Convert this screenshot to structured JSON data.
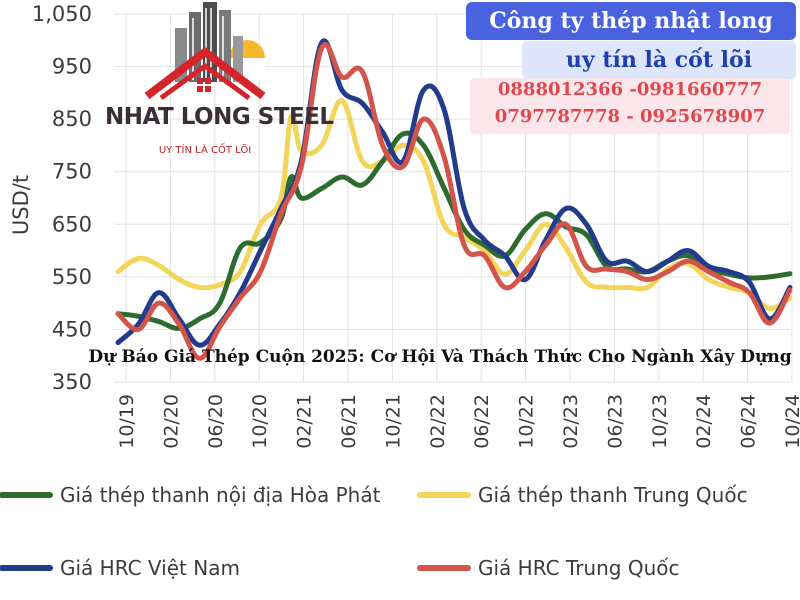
{
  "chart_data": {
    "type": "line",
    "ylabel": "USD/t",
    "ylim": [
      350,
      1050
    ],
    "yticks": [
      "1,050",
      "950",
      "850",
      "750",
      "650",
      "550",
      "450",
      "350"
    ],
    "ytick_values": [
      1050,
      950,
      850,
      750,
      650,
      550,
      450,
      350
    ],
    "xlabels": [
      "10/19",
      "02/20",
      "06/20",
      "10/20",
      "02/21",
      "06/21",
      "10/21",
      "02/22",
      "06/22",
      "10/22",
      "02/23",
      "06/23",
      "10/23",
      "02/24",
      "06/24",
      "10/24"
    ],
    "grid": true,
    "legend_position": "bottom",
    "series": [
      {
        "name": "Giá thép thanh nội địa Hòa Phát",
        "color": "#2e6b2e",
        "points": [
          [
            0,
            480
          ],
          [
            1,
            475
          ],
          [
            2,
            465
          ],
          [
            3,
            452
          ],
          [
            4,
            470
          ],
          [
            5,
            500
          ],
          [
            6,
            605
          ],
          [
            7,
            615
          ],
          [
            8,
            660
          ],
          [
            8.5,
            740
          ],
          [
            9,
            700
          ],
          [
            10,
            718
          ],
          [
            11,
            740
          ],
          [
            12,
            725
          ],
          [
            13,
            770
          ],
          [
            14,
            822
          ],
          [
            15,
            800
          ],
          [
            16,
            720
          ],
          [
            17,
            640
          ],
          [
            18,
            610
          ],
          [
            19,
            590
          ],
          [
            20,
            640
          ],
          [
            21,
            670
          ],
          [
            22,
            645
          ],
          [
            23,
            630
          ],
          [
            24,
            570
          ],
          [
            25,
            565
          ],
          [
            26,
            560
          ],
          [
            27,
            580
          ],
          [
            28,
            590
          ],
          [
            29,
            565
          ],
          [
            30,
            555
          ],
          [
            31,
            548
          ],
          [
            32,
            550
          ],
          [
            33,
            556
          ]
        ]
      },
      {
        "name": "Giá thép thanh Trung Quốc",
        "color": "#f2d55a",
        "points": [
          [
            0,
            560
          ],
          [
            1,
            585
          ],
          [
            2,
            572
          ],
          [
            3,
            545
          ],
          [
            4,
            530
          ],
          [
            5,
            535
          ],
          [
            6,
            560
          ],
          [
            7,
            650
          ],
          [
            8,
            700
          ],
          [
            8.5,
            855
          ],
          [
            9,
            790
          ],
          [
            10,
            800
          ],
          [
            11,
            885
          ],
          [
            12,
            770
          ],
          [
            13,
            770
          ],
          [
            14,
            800
          ],
          [
            15,
            770
          ],
          [
            16,
            650
          ],
          [
            17,
            625
          ],
          [
            18,
            600
          ],
          [
            19,
            555
          ],
          [
            20,
            600
          ],
          [
            21,
            650
          ],
          [
            22,
            605
          ],
          [
            23,
            540
          ],
          [
            24,
            530
          ],
          [
            25,
            530
          ],
          [
            26,
            530
          ],
          [
            27,
            565
          ],
          [
            28,
            575
          ],
          [
            29,
            545
          ],
          [
            30,
            530
          ],
          [
            31,
            520
          ],
          [
            32,
            490
          ],
          [
            33,
            510
          ]
        ]
      },
      {
        "name": "Giá HRC Việt Nam",
        "color": "#233b8c",
        "points": [
          [
            0,
            425
          ],
          [
            1,
            460
          ],
          [
            2,
            520
          ],
          [
            3,
            470
          ],
          [
            4,
            420
          ],
          [
            5,
            460
          ],
          [
            6,
            520
          ],
          [
            7,
            600
          ],
          [
            8,
            680
          ],
          [
            9,
            770
          ],
          [
            10,
            995
          ],
          [
            11,
            905
          ],
          [
            12,
            880
          ],
          [
            13,
            825
          ],
          [
            14,
            770
          ],
          [
            15,
            905
          ],
          [
            16,
            870
          ],
          [
            17,
            680
          ],
          [
            18,
            620
          ],
          [
            19,
            590
          ],
          [
            20,
            545
          ],
          [
            21,
            620
          ],
          [
            22,
            680
          ],
          [
            23,
            650
          ],
          [
            24,
            580
          ],
          [
            25,
            580
          ],
          [
            26,
            560
          ],
          [
            27,
            580
          ],
          [
            28,
            600
          ],
          [
            29,
            570
          ],
          [
            30,
            560
          ],
          [
            31,
            540
          ],
          [
            32,
            470
          ],
          [
            33,
            530
          ]
        ]
      },
      {
        "name": "Giá HRC Trung Quốc",
        "color": "#d3544a",
        "points": [
          [
            0,
            480
          ],
          [
            1,
            450
          ],
          [
            2,
            500
          ],
          [
            3,
            460
          ],
          [
            4,
            395
          ],
          [
            5,
            455
          ],
          [
            6,
            510
          ],
          [
            7,
            560
          ],
          [
            8,
            670
          ],
          [
            9,
            760
          ],
          [
            10,
            985
          ],
          [
            11,
            930
          ],
          [
            12,
            940
          ],
          [
            13,
            800
          ],
          [
            14,
            760
          ],
          [
            15,
            850
          ],
          [
            16,
            780
          ],
          [
            17,
            610
          ],
          [
            18,
            590
          ],
          [
            19,
            530
          ],
          [
            20,
            560
          ],
          [
            21,
            610
          ],
          [
            22,
            650
          ],
          [
            23,
            570
          ],
          [
            24,
            565
          ],
          [
            25,
            560
          ],
          [
            26,
            545
          ],
          [
            27,
            560
          ],
          [
            28,
            580
          ],
          [
            29,
            560
          ],
          [
            30,
            540
          ],
          [
            31,
            520
          ],
          [
            32,
            462
          ],
          [
            33,
            525
          ]
        ]
      }
    ]
  },
  "banner": {
    "company": "Công ty thép nhật long",
    "slogan": "uy tín là cốt lõi",
    "phone_line_1": "0888012366 -0981660777",
    "phone_line_2": "0797787778 - 0925678907"
  },
  "logo": {
    "name": "NHAT LONG STEEL",
    "slogan": "UY TÍN LÀ CỐT LÕI"
  },
  "article_title": "Dự Báo Giá Thép Cuộn 2025: Cơ Hội Và Thách Thức Cho Ngành Xây Dựng"
}
